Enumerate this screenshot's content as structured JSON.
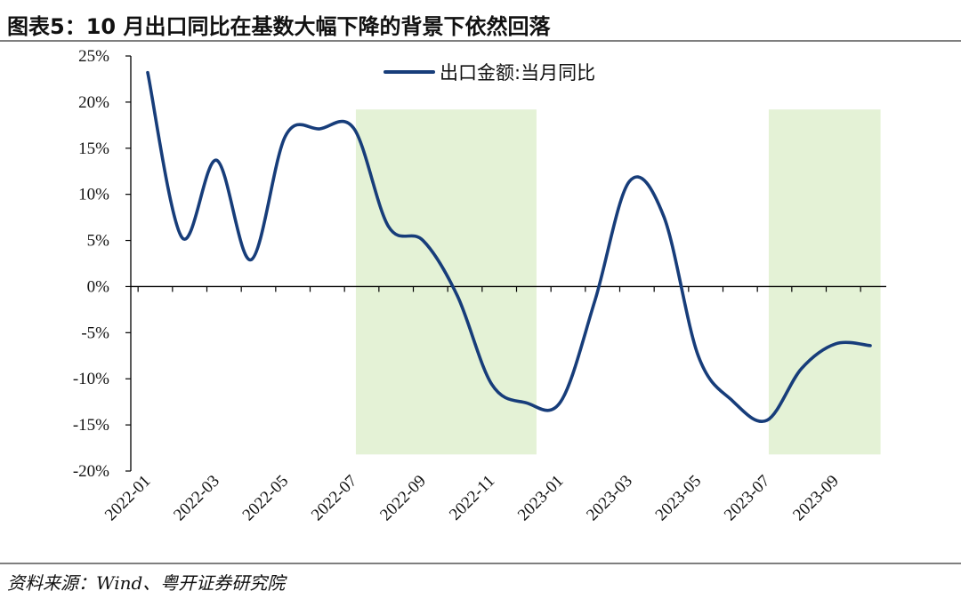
{
  "title": "图表5：10 月出口同比在基数大幅下降的背景下依然回落",
  "source": "资料来源：Wind、粤开证券研究院",
  "colors": {
    "line": "#173d7a",
    "line_light": "#3f6f8a",
    "shade": "#e4f2d6",
    "axis": "#000000"
  },
  "chart_data": {
    "type": "line",
    "title": "图表5：10 月出口同比在基数大幅下降的背景下依然回落",
    "xlabel": "",
    "ylabel": "",
    "ylim": [
      -20,
      25
    ],
    "y_ticks": [
      "25%",
      "20%",
      "15%",
      "10%",
      "5%",
      "0%",
      "-5%",
      "-10%",
      "-15%",
      "-20%"
    ],
    "x": [
      "2022-01",
      "2022-02",
      "2022-03",
      "2022-04",
      "2022-05",
      "2022-06",
      "2022-07",
      "2022-08",
      "2022-09",
      "2022-10",
      "2022-11",
      "2022-12",
      "2023-01",
      "2023-02",
      "2023-03",
      "2023-04",
      "2023-05",
      "2023-06",
      "2023-07",
      "2023-08",
      "2023-09",
      "2023-10"
    ],
    "x_tick_labels": [
      "2022-01",
      "2022-03",
      "2022-05",
      "2022-07",
      "2022-09",
      "2022-11",
      "2023-01",
      "2023-03",
      "2023-05",
      "2023-07",
      "2023-09"
    ],
    "series": [
      {
        "name": "出口金额:当月同比",
        "values": [
          23.2,
          5.3,
          13.7,
          2.9,
          16.3,
          17.1,
          17.1,
          6.5,
          5.0,
          -1.0,
          -10.6,
          -12.6,
          -12.5,
          -1.5,
          11.4,
          7.6,
          -7.5,
          -12.4,
          -14.5,
          -8.9,
          -6.2,
          -6.4
        ]
      }
    ],
    "shaded_ranges": [
      [
        "2022-07",
        "2022-12"
      ],
      [
        "2023-07",
        "2023-10"
      ]
    ],
    "legend": "top-center",
    "grid": false
  }
}
